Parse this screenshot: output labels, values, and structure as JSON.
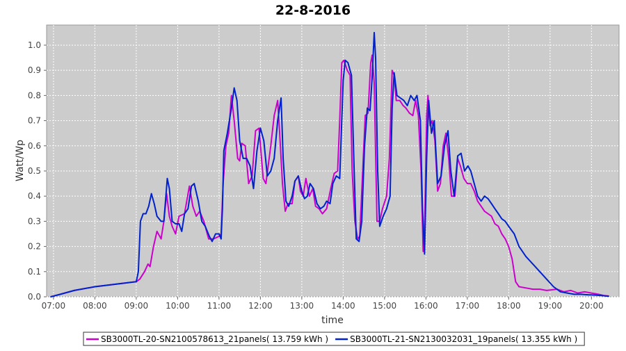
{
  "chart_data": {
    "type": "line",
    "title": "22-8-2016",
    "xlabel": "time",
    "ylabel": "Watt/Wp",
    "xlim": [
      "06:50",
      "20:40"
    ],
    "ylim": [
      0,
      1.08
    ],
    "x_ticks": [
      "07:00",
      "08:00",
      "09:00",
      "10:00",
      "11:00",
      "12:00",
      "13:00",
      "14:00",
      "15:00",
      "16:00",
      "17:00",
      "18:00",
      "19:00",
      "20:00"
    ],
    "y_ticks": [
      "0.0",
      "0.1",
      "0.2",
      "0.3",
      "0.4",
      "0.5",
      "0.6",
      "0.7",
      "0.8",
      "0.9",
      "1.0"
    ],
    "grid": true,
    "legend_position": "bottom",
    "plot_background": "#cccccc",
    "series": [
      {
        "name": "SB3000TL-20-SN2100578613_21panels( 13.759 kWh )",
        "color": "#cc00cc",
        "points": [
          [
            "06:56",
            0.0
          ],
          [
            "07:10",
            0.01
          ],
          [
            "07:30",
            0.025
          ],
          [
            "08:00",
            0.04
          ],
          [
            "08:30",
            0.05
          ],
          [
            "09:00",
            0.06
          ],
          [
            "09:05",
            0.07
          ],
          [
            "09:12",
            0.1
          ],
          [
            "09:17",
            0.13
          ],
          [
            "09:20",
            0.12
          ],
          [
            "09:25",
            0.2
          ],
          [
            "09:30",
            0.26
          ],
          [
            "09:36",
            0.23
          ],
          [
            "09:40",
            0.3
          ],
          [
            "09:44",
            0.41
          ],
          [
            "09:48",
            0.32
          ],
          [
            "09:52",
            0.28
          ],
          [
            "09:57",
            0.25
          ],
          [
            "10:02",
            0.32
          ],
          [
            "10:10",
            0.33
          ],
          [
            "10:17",
            0.44
          ],
          [
            "10:22",
            0.36
          ],
          [
            "10:27",
            0.32
          ],
          [
            "10:32",
            0.34
          ],
          [
            "10:38",
            0.3
          ],
          [
            "10:45",
            0.23
          ],
          [
            "10:52",
            0.23
          ],
          [
            "11:00",
            0.24
          ],
          [
            "11:03",
            0.25
          ],
          [
            "11:06",
            0.45
          ],
          [
            "11:10",
            0.6
          ],
          [
            "11:14",
            0.65
          ],
          [
            "11:18",
            0.8
          ],
          [
            "11:22",
            0.7
          ],
          [
            "11:27",
            0.55
          ],
          [
            "11:30",
            0.54
          ],
          [
            "11:33",
            0.61
          ],
          [
            "11:38",
            0.6
          ],
          [
            "11:43",
            0.45
          ],
          [
            "11:48",
            0.48
          ],
          [
            "11:53",
            0.66
          ],
          [
            "11:58",
            0.67
          ],
          [
            "12:04",
            0.47
          ],
          [
            "12:08",
            0.45
          ],
          [
            "12:15",
            0.6
          ],
          [
            "12:20",
            0.72
          ],
          [
            "12:25",
            0.78
          ],
          [
            "12:28",
            0.65
          ],
          [
            "12:32",
            0.45
          ],
          [
            "12:36",
            0.34
          ],
          [
            "12:40",
            0.37
          ],
          [
            "12:46",
            0.37
          ],
          [
            "12:50",
            0.46
          ],
          [
            "12:55",
            0.48
          ],
          [
            "12:58",
            0.42
          ],
          [
            "13:02",
            0.4
          ],
          [
            "13:06",
            0.47
          ],
          [
            "13:11",
            0.4
          ],
          [
            "13:16",
            0.43
          ],
          [
            "13:20",
            0.36
          ],
          [
            "13:25",
            0.35
          ],
          [
            "13:30",
            0.33
          ],
          [
            "13:36",
            0.35
          ],
          [
            "13:42",
            0.43
          ],
          [
            "13:47",
            0.49
          ],
          [
            "13:52",
            0.5
          ],
          [
            "13:55",
            0.7
          ],
          [
            "13:58",
            0.93
          ],
          [
            "14:01",
            0.94
          ],
          [
            "14:06",
            0.9
          ],
          [
            "14:10",
            0.88
          ],
          [
            "14:13",
            0.5
          ],
          [
            "14:17",
            0.3
          ],
          [
            "14:21",
            0.23
          ],
          [
            "14:24",
            0.24
          ],
          [
            "14:28",
            0.48
          ],
          [
            "14:32",
            0.72
          ],
          [
            "14:36",
            0.73
          ],
          [
            "14:40",
            0.93
          ],
          [
            "14:42",
            0.96
          ],
          [
            "14:45",
            0.85
          ],
          [
            "14:49",
            0.3
          ],
          [
            "14:53",
            0.3
          ],
          [
            "14:57",
            0.35
          ],
          [
            "15:03",
            0.4
          ],
          [
            "15:07",
            0.55
          ],
          [
            "15:11",
            0.9
          ],
          [
            "15:14",
            0.88
          ],
          [
            "15:17",
            0.78
          ],
          [
            "15:22",
            0.78
          ],
          [
            "15:27",
            0.76
          ],
          [
            "15:31",
            0.75
          ],
          [
            "15:36",
            0.73
          ],
          [
            "15:41",
            0.72
          ],
          [
            "15:45",
            0.78
          ],
          [
            "15:49",
            0.72
          ],
          [
            "15:53",
            0.5
          ],
          [
            "15:56",
            0.18
          ],
          [
            "15:58",
            0.24
          ],
          [
            "16:01",
            0.72
          ],
          [
            "16:03",
            0.8
          ],
          [
            "16:06",
            0.68
          ],
          [
            "16:09",
            0.7
          ],
          [
            "16:13",
            0.62
          ],
          [
            "16:17",
            0.42
          ],
          [
            "16:21",
            0.45
          ],
          [
            "16:25",
            0.6
          ],
          [
            "16:29",
            0.65
          ],
          [
            "16:33",
            0.55
          ],
          [
            "16:37",
            0.4
          ],
          [
            "16:42",
            0.4
          ],
          [
            "16:46",
            0.55
          ],
          [
            "16:50",
            0.52
          ],
          [
            "16:55",
            0.47
          ],
          [
            "17:00",
            0.45
          ],
          [
            "17:05",
            0.45
          ],
          [
            "17:10",
            0.42
          ],
          [
            "17:15",
            0.38
          ],
          [
            "17:20",
            0.36
          ],
          [
            "17:25",
            0.34
          ],
          [
            "17:30",
            0.33
          ],
          [
            "17:35",
            0.32
          ],
          [
            "17:40",
            0.29
          ],
          [
            "17:45",
            0.28
          ],
          [
            "17:50",
            0.25
          ],
          [
            "17:55",
            0.23
          ],
          [
            "18:00",
            0.2
          ],
          [
            "18:05",
            0.15
          ],
          [
            "18:10",
            0.06
          ],
          [
            "18:15",
            0.04
          ],
          [
            "18:25",
            0.035
          ],
          [
            "18:35",
            0.03
          ],
          [
            "18:45",
            0.03
          ],
          [
            "18:55",
            0.025
          ],
          [
            "19:10",
            0.03
          ],
          [
            "19:20",
            0.02
          ],
          [
            "19:30",
            0.025
          ],
          [
            "19:40",
            0.015
          ],
          [
            "19:50",
            0.02
          ],
          [
            "20:00",
            0.015
          ],
          [
            "20:10",
            0.01
          ],
          [
            "20:18",
            0.005
          ],
          [
            "20:25",
            0.003
          ]
        ]
      },
      {
        "name": "SB3000TL-21-SN2130032031_19panels( 13.355 kWh )",
        "color": "#0022cc",
        "points": [
          [
            "06:56",
            0.0
          ],
          [
            "07:10",
            0.01
          ],
          [
            "07:30",
            0.025
          ],
          [
            "08:00",
            0.04
          ],
          [
            "08:30",
            0.05
          ],
          [
            "09:00",
            0.06
          ],
          [
            "09:03",
            0.1
          ],
          [
            "09:06",
            0.3
          ],
          [
            "09:10",
            0.33
          ],
          [
            "09:14",
            0.33
          ],
          [
            "09:18",
            0.36
          ],
          [
            "09:22",
            0.41
          ],
          [
            "09:26",
            0.37
          ],
          [
            "09:30",
            0.32
          ],
          [
            "09:36",
            0.3
          ],
          [
            "09:40",
            0.3
          ],
          [
            "09:45",
            0.47
          ],
          [
            "09:48",
            0.43
          ],
          [
            "09:52",
            0.3
          ],
          [
            "09:57",
            0.29
          ],
          [
            "10:02",
            0.29
          ],
          [
            "10:06",
            0.26
          ],
          [
            "10:10",
            0.33
          ],
          [
            "10:15",
            0.35
          ],
          [
            "10:20",
            0.44
          ],
          [
            "10:24",
            0.45
          ],
          [
            "10:30",
            0.38
          ],
          [
            "10:35",
            0.3
          ],
          [
            "10:40",
            0.28
          ],
          [
            "10:46",
            0.24
          ],
          [
            "10:50",
            0.22
          ],
          [
            "10:55",
            0.25
          ],
          [
            "11:00",
            0.25
          ],
          [
            "11:03",
            0.23
          ],
          [
            "11:05",
            0.35
          ],
          [
            "11:07",
            0.58
          ],
          [
            "11:12",
            0.65
          ],
          [
            "11:18",
            0.75
          ],
          [
            "11:22",
            0.83
          ],
          [
            "11:26",
            0.78
          ],
          [
            "11:30",
            0.62
          ],
          [
            "11:35",
            0.55
          ],
          [
            "11:40",
            0.55
          ],
          [
            "11:45",
            0.52
          ],
          [
            "11:50",
            0.43
          ],
          [
            "11:55",
            0.58
          ],
          [
            "12:00",
            0.67
          ],
          [
            "12:05",
            0.62
          ],
          [
            "12:10",
            0.48
          ],
          [
            "12:15",
            0.5
          ],
          [
            "12:20",
            0.55
          ],
          [
            "12:25",
            0.7
          ],
          [
            "12:30",
            0.79
          ],
          [
            "12:33",
            0.55
          ],
          [
            "12:37",
            0.38
          ],
          [
            "12:41",
            0.36
          ],
          [
            "12:46",
            0.4
          ],
          [
            "12:50",
            0.46
          ],
          [
            "12:55",
            0.48
          ],
          [
            "13:00",
            0.42
          ],
          [
            "13:04",
            0.39
          ],
          [
            "13:08",
            0.4
          ],
          [
            "13:12",
            0.45
          ],
          [
            "13:17",
            0.43
          ],
          [
            "13:22",
            0.37
          ],
          [
            "13:27",
            0.35
          ],
          [
            "13:32",
            0.36
          ],
          [
            "13:36",
            0.38
          ],
          [
            "13:41",
            0.37
          ],
          [
            "13:45",
            0.45
          ],
          [
            "13:50",
            0.48
          ],
          [
            "13:55",
            0.47
          ],
          [
            "14:00",
            0.86
          ],
          [
            "14:03",
            0.94
          ],
          [
            "14:07",
            0.93
          ],
          [
            "14:12",
            0.88
          ],
          [
            "14:16",
            0.5
          ],
          [
            "14:19",
            0.23
          ],
          [
            "14:23",
            0.22
          ],
          [
            "14:27",
            0.3
          ],
          [
            "14:31",
            0.6
          ],
          [
            "14:35",
            0.75
          ],
          [
            "14:39",
            0.74
          ],
          [
            "14:42",
            0.87
          ],
          [
            "14:45",
            1.05
          ],
          [
            "14:47",
            0.95
          ],
          [
            "14:50",
            0.5
          ],
          [
            "14:53",
            0.28
          ],
          [
            "14:58",
            0.32
          ],
          [
            "15:03",
            0.35
          ],
          [
            "15:08",
            0.4
          ],
          [
            "15:11",
            0.75
          ],
          [
            "15:14",
            0.89
          ],
          [
            "15:18",
            0.8
          ],
          [
            "15:23",
            0.79
          ],
          [
            "15:28",
            0.78
          ],
          [
            "15:33",
            0.76
          ],
          [
            "15:38",
            0.8
          ],
          [
            "15:43",
            0.78
          ],
          [
            "15:47",
            0.8
          ],
          [
            "15:52",
            0.7
          ],
          [
            "15:55",
            0.35
          ],
          [
            "15:58",
            0.17
          ],
          [
            "16:01",
            0.55
          ],
          [
            "16:04",
            0.78
          ],
          [
            "16:08",
            0.65
          ],
          [
            "16:12",
            0.7
          ],
          [
            "16:17",
            0.45
          ],
          [
            "16:22",
            0.48
          ],
          [
            "16:27",
            0.6
          ],
          [
            "16:32",
            0.66
          ],
          [
            "16:36",
            0.5
          ],
          [
            "16:41",
            0.4
          ],
          [
            "16:46",
            0.56
          ],
          [
            "16:51",
            0.57
          ],
          [
            "16:56",
            0.5
          ],
          [
            "17:01",
            0.52
          ],
          [
            "17:05",
            0.5
          ],
          [
            "17:10",
            0.45
          ],
          [
            "17:15",
            0.4
          ],
          [
            "17:20",
            0.38
          ],
          [
            "17:25",
            0.4
          ],
          [
            "17:30",
            0.39
          ],
          [
            "17:35",
            0.37
          ],
          [
            "17:40",
            0.35
          ],
          [
            "17:45",
            0.33
          ],
          [
            "17:50",
            0.31
          ],
          [
            "17:55",
            0.3
          ],
          [
            "18:00",
            0.28
          ],
          [
            "18:08",
            0.25
          ],
          [
            "18:15",
            0.2
          ],
          [
            "18:25",
            0.16
          ],
          [
            "18:35",
            0.13
          ],
          [
            "18:45",
            0.1
          ],
          [
            "18:55",
            0.07
          ],
          [
            "19:05",
            0.04
          ],
          [
            "19:15",
            0.02
          ],
          [
            "19:25",
            0.015
          ],
          [
            "19:35",
            0.01
          ],
          [
            "19:45",
            0.01
          ],
          [
            "19:55",
            0.008
          ],
          [
            "20:05",
            0.007
          ],
          [
            "20:15",
            0.005
          ],
          [
            "20:25",
            0.002
          ]
        ]
      }
    ]
  }
}
